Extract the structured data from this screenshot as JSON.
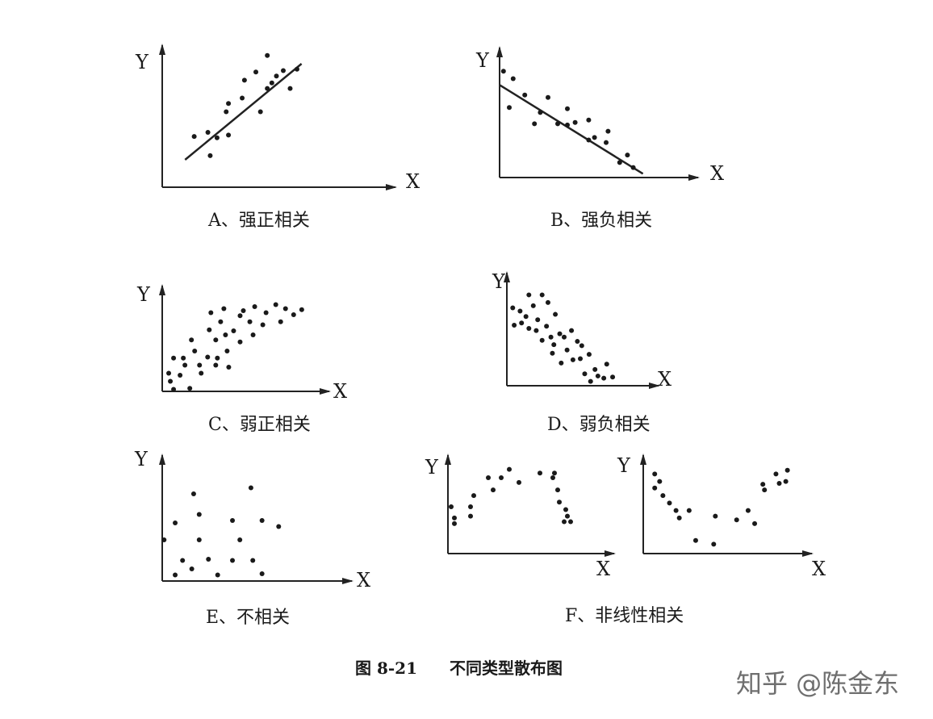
{
  "figure_caption": "图 8-21　　不同类型散布图",
  "watermark": "知乎 @陈金东",
  "chart_data": [
    {
      "type": "scatter",
      "xlabel": "X",
      "ylabel": "Y",
      "caption": "A、强正相关",
      "xlim": [
        0,
        10
      ],
      "ylim": [
        0,
        10
      ],
      "trend_line": [
        [
          1,
          2
        ],
        [
          6.1,
          9
        ]
      ],
      "points": [
        [
          1.4,
          3.7
        ],
        [
          2,
          4
        ],
        [
          2.1,
          2.3
        ],
        [
          2.4,
          3.6
        ],
        [
          2.9,
          3.8
        ],
        [
          2.8,
          5.5
        ],
        [
          2.9,
          6.1
        ],
        [
          3.5,
          6.5
        ],
        [
          3.6,
          7.8
        ],
        [
          4.3,
          5.5
        ],
        [
          4.1,
          8.4
        ],
        [
          4.6,
          7.2
        ],
        [
          4.8,
          7.6
        ],
        [
          4.6,
          9.6
        ],
        [
          5,
          8.1
        ],
        [
          5.6,
          7.2
        ],
        [
          5.3,
          8.5
        ],
        [
          5.9,
          8.6
        ]
      ]
    },
    {
      "type": "scatter",
      "xlabel": "X",
      "ylabel": "Y",
      "caption": "B、强负相关",
      "xlim": [
        0,
        10
      ],
      "ylim": [
        0,
        10
      ],
      "trend_line": [
        [
          0,
          7.4
        ],
        [
          7.4,
          0.3
        ]
      ],
      "points": [
        [
          0.2,
          8.5
        ],
        [
          0.7,
          7.9
        ],
        [
          0.5,
          5.6
        ],
        [
          1.8,
          4.3
        ],
        [
          1.3,
          6.6
        ],
        [
          2.1,
          5.2
        ],
        [
          2.5,
          6.4
        ],
        [
          3,
          4.3
        ],
        [
          3.5,
          4.2
        ],
        [
          3.5,
          5.5
        ],
        [
          3.9,
          4.4
        ],
        [
          4.6,
          3
        ],
        [
          4.6,
          4.6
        ],
        [
          4.9,
          3.2
        ],
        [
          5.6,
          3.7
        ],
        [
          6.2,
          1.2
        ],
        [
          5.5,
          2.8
        ],
        [
          6.6,
          1.8
        ],
        [
          6.9,
          0.8
        ]
      ]
    },
    {
      "type": "scatter",
      "xlabel": "X",
      "ylabel": "Y",
      "caption": "C、弱正相关",
      "xlim": [
        0,
        10
      ],
      "ylim": [
        0,
        10
      ],
      "points": [
        [
          0.4,
          1.8
        ],
        [
          0.5,
          1
        ],
        [
          0.7,
          0.2
        ],
        [
          0.7,
          3.3
        ],
        [
          1.3,
          3.3
        ],
        [
          1.1,
          1.6
        ],
        [
          1.4,
          2.6
        ],
        [
          1.7,
          0.3
        ],
        [
          1.8,
          5.1
        ],
        [
          2,
          4
        ],
        [
          2.3,
          2.6
        ],
        [
          2.4,
          1.8
        ],
        [
          2.9,
          6.1
        ],
        [
          2.8,
          3.4
        ],
        [
          3,
          7.8
        ],
        [
          3.3,
          5.1
        ],
        [
          3.4,
          3.3
        ],
        [
          3.3,
          2.6
        ],
        [
          3.6,
          6.9
        ],
        [
          3.8,
          8.2
        ],
        [
          3.9,
          5.6
        ],
        [
          4.1,
          2.4
        ],
        [
          4,
          4
        ],
        [
          4.4,
          6
        ],
        [
          4.8,
          7.5
        ],
        [
          4.8,
          4.9
        ],
        [
          5,
          8
        ],
        [
          5.4,
          6.9
        ],
        [
          5.6,
          5.6
        ],
        [
          5.7,
          8.4
        ],
        [
          6.2,
          6.6
        ],
        [
          6.4,
          7.8
        ],
        [
          7,
          8.6
        ],
        [
          7.3,
          6.9
        ],
        [
          7.6,
          8.2
        ],
        [
          8.1,
          7.6
        ],
        [
          8.6,
          8.1
        ]
      ]
    },
    {
      "type": "scatter",
      "xlabel": "X",
      "ylabel": "Y",
      "caption": "D、弱负相关",
      "xlim": [
        0,
        10
      ],
      "ylim": [
        0,
        10
      ],
      "points": [
        [
          0.4,
          7.2
        ],
        [
          0.5,
          5.6
        ],
        [
          0.9,
          6.9
        ],
        [
          1,
          5.8
        ],
        [
          1.3,
          6.4
        ],
        [
          1.5,
          8.4
        ],
        [
          1.5,
          5.3
        ],
        [
          1.8,
          7.4
        ],
        [
          2,
          5.1
        ],
        [
          2.1,
          6.1
        ],
        [
          2.4,
          8.4
        ],
        [
          2.4,
          4.2
        ],
        [
          2.7,
          5.5
        ],
        [
          2.8,
          7.7
        ],
        [
          3,
          4.5
        ],
        [
          3.1,
          3
        ],
        [
          3.3,
          6.6
        ],
        [
          3.2,
          3.8
        ],
        [
          3.6,
          4.8
        ],
        [
          3.7,
          2.1
        ],
        [
          3.9,
          4.5
        ],
        [
          4.1,
          3.3
        ],
        [
          4.4,
          5.1
        ],
        [
          4.5,
          2.4
        ],
        [
          4.8,
          4.1
        ],
        [
          5,
          2.5
        ],
        [
          5.1,
          3.7
        ],
        [
          5.3,
          1.1
        ],
        [
          5.6,
          2.9
        ],
        [
          5.7,
          0.4
        ],
        [
          6,
          1.5
        ],
        [
          6.2,
          0.9
        ],
        [
          6.6,
          0.7
        ],
        [
          6.8,
          2
        ],
        [
          7.2,
          0.8
        ]
      ]
    },
    {
      "type": "scatter",
      "xlabel": "X",
      "ylabel": "Y",
      "caption": "E、不相关",
      "xlim": [
        0,
        10
      ],
      "ylim": [
        0,
        10
      ],
      "points": [
        [
          0.1,
          3.4
        ],
        [
          0.7,
          4.8
        ],
        [
          0.7,
          0.5
        ],
        [
          1.1,
          1.7
        ],
        [
          1.6,
          1
        ],
        [
          1.7,
          7.2
        ],
        [
          2,
          5.5
        ],
        [
          2,
          3.4
        ],
        [
          2.5,
          1.8
        ],
        [
          3,
          0.5
        ],
        [
          3.8,
          5
        ],
        [
          3.8,
          1.7
        ],
        [
          4.2,
          3.4
        ],
        [
          4.8,
          7.7
        ],
        [
          4.9,
          1.7
        ],
        [
          5.4,
          5
        ],
        [
          5.4,
          0.6
        ],
        [
          6.3,
          4.5
        ]
      ]
    },
    {
      "type": "scatter",
      "xlabel": "X",
      "ylabel": "Y",
      "caption": "",
      "xlim": [
        0,
        10
      ],
      "ylim": [
        0,
        10
      ],
      "points": [
        [
          0.2,
          5
        ],
        [
          0.4,
          3.8
        ],
        [
          0.4,
          3.2
        ],
        [
          1.4,
          5
        ],
        [
          1.4,
          4
        ],
        [
          1.6,
          6.2
        ],
        [
          2.5,
          8.1
        ],
        [
          2.8,
          6.8
        ],
        [
          3.3,
          8.1
        ],
        [
          3.8,
          9
        ],
        [
          4.4,
          7.6
        ],
        [
          5.7,
          8.6
        ],
        [
          6.6,
          8.6
        ],
        [
          6.5,
          8.1
        ],
        [
          6.8,
          6.8
        ],
        [
          6.9,
          5.5
        ],
        [
          7.3,
          4.7
        ],
        [
          7.2,
          3.4
        ],
        [
          7.4,
          4
        ],
        [
          7.6,
          3.4
        ]
      ]
    },
    {
      "type": "scatter",
      "xlabel": "X",
      "ylabel": "Y",
      "caption": "",
      "xlim": [
        0,
        10
      ],
      "ylim": [
        0,
        10
      ],
      "points": [
        [
          0.7,
          8.5
        ],
        [
          0.7,
          7
        ],
        [
          1,
          7.7
        ],
        [
          1.2,
          6.2
        ],
        [
          1.6,
          5.4
        ],
        [
          2,
          4.6
        ],
        [
          2.2,
          3.8
        ],
        [
          2.8,
          4.6
        ],
        [
          3.2,
          1.4
        ],
        [
          4.4,
          4
        ],
        [
          4.3,
          1
        ],
        [
          5.7,
          3.6
        ],
        [
          6.4,
          4.6
        ],
        [
          6.8,
          3.2
        ],
        [
          7.3,
          7.4
        ],
        [
          7.4,
          6.8
        ],
        [
          8.1,
          8.5
        ],
        [
          8.3,
          7.5
        ],
        [
          8.8,
          8.9
        ],
        [
          8.7,
          7.7
        ]
      ]
    }
  ],
  "pair_caption": "F、非线性相关"
}
